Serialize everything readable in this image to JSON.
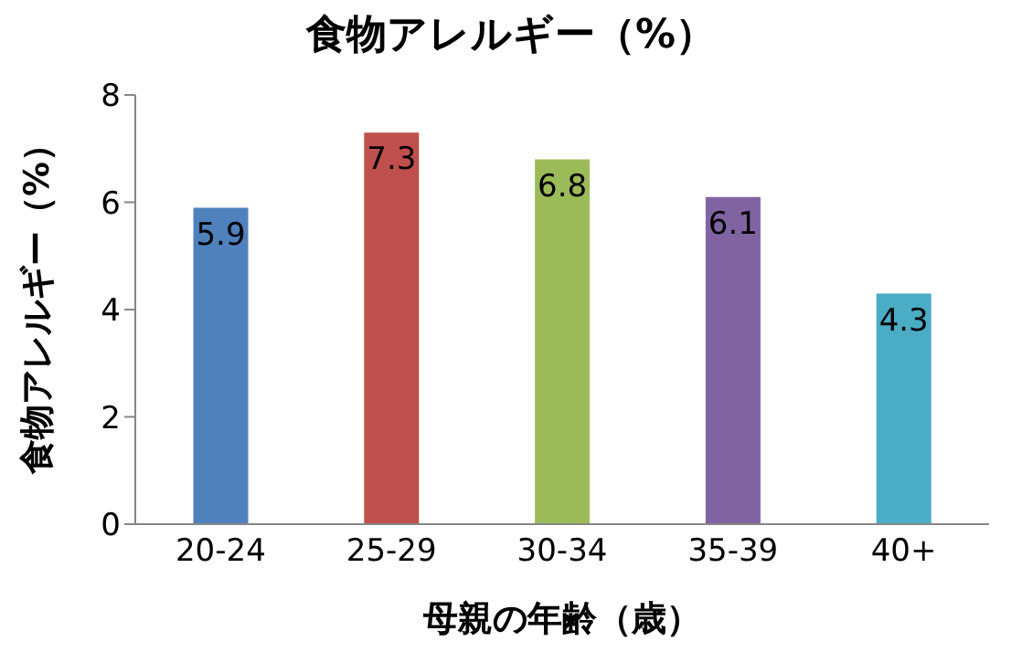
{
  "chart_data": {
    "type": "bar",
    "title": "食物アレルギー（%）",
    "xlabel": "母親の年齢（歳）",
    "ylabel": "食物アレルギー（%）",
    "categories": [
      "20-24",
      "25-29",
      "30-34",
      "35-39",
      "40+"
    ],
    "values": [
      5.9,
      7.3,
      6.8,
      6.1,
      4.3
    ],
    "colors": [
      "#4f81bd",
      "#c0504d",
      "#9bbb59",
      "#8064a2",
      "#4bacc6"
    ],
    "ylim": [
      0,
      8
    ],
    "yticks": [
      0,
      2,
      4,
      6,
      8
    ],
    "data_labels": true,
    "grid": false
  }
}
